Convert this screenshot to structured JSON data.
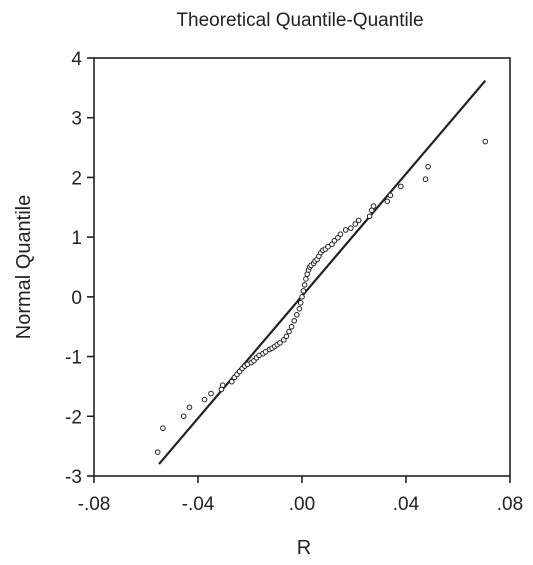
{
  "chart_data": {
    "type": "scatter",
    "title": "Theoretical Quantile-Quantile",
    "xlabel": "R",
    "ylabel": "Normal Quantile",
    "xlim": [
      -0.08,
      0.08
    ],
    "ylim": [
      -3,
      4
    ],
    "x_ticks": [
      -0.08,
      -0.04,
      0.0,
      0.04,
      0.08
    ],
    "x_tick_labels": [
      "-.08",
      "-.04",
      ".00",
      ".04",
      ".08"
    ],
    "y_ticks": [
      -3,
      -2,
      -1,
      0,
      1,
      2,
      3,
      4
    ],
    "y_tick_labels": [
      "-3",
      "-2",
      "-1",
      "0",
      "1",
      "2",
      "3",
      "4"
    ],
    "grid": false,
    "legend": "none",
    "reference_line": {
      "x": [
        -0.055,
        0.0705
      ],
      "y": [
        -2.8,
        3.62
      ]
    },
    "series": [
      {
        "x": [
          -0.0555,
          -0.0535,
          -0.0455,
          -0.0433,
          -0.0375,
          -0.035,
          -0.031,
          -0.0305,
          -0.027,
          -0.026,
          -0.025,
          -0.024,
          -0.023,
          -0.022,
          -0.021,
          -0.0195,
          -0.0185,
          -0.0175,
          -0.0165,
          -0.015,
          -0.014,
          -0.0125,
          -0.0115,
          -0.0105,
          -0.0095,
          -0.0085,
          -0.007,
          -0.006,
          -0.005,
          -0.004,
          -0.003,
          -0.002,
          -0.001,
          -0.0005,
          0.0,
          0.0005,
          0.001,
          0.0015,
          0.002,
          0.0025,
          0.003,
          0.0035,
          0.0045,
          0.005,
          0.0058,
          0.0065,
          0.0072,
          0.008,
          0.009,
          0.01,
          0.0115,
          0.0125,
          0.0138,
          0.0148,
          0.0168,
          0.0188,
          0.0205,
          0.0218,
          0.026,
          0.0268,
          0.0275,
          0.0328,
          0.034,
          0.038,
          0.0475,
          0.0485,
          0.0705
        ],
        "y": [
          -2.6,
          -2.2,
          -2.0,
          -1.85,
          -1.72,
          -1.62,
          -1.55,
          -1.48,
          -1.42,
          -1.35,
          -1.3,
          -1.25,
          -1.2,
          -1.16,
          -1.13,
          -1.1,
          -1.07,
          -1.02,
          -0.98,
          -0.95,
          -0.92,
          -0.88,
          -0.86,
          -0.83,
          -0.8,
          -0.77,
          -0.72,
          -0.66,
          -0.58,
          -0.5,
          -0.4,
          -0.3,
          -0.2,
          -0.1,
          0.0,
          0.1,
          0.2,
          0.3,
          0.38,
          0.45,
          0.5,
          0.53,
          0.56,
          0.6,
          0.63,
          0.68,
          0.74,
          0.78,
          0.8,
          0.84,
          0.88,
          0.94,
          0.99,
          1.05,
          1.12,
          1.15,
          1.22,
          1.28,
          1.35,
          1.45,
          1.52,
          1.6,
          1.7,
          1.85,
          1.97,
          2.18,
          2.6
        ]
      }
    ]
  }
}
